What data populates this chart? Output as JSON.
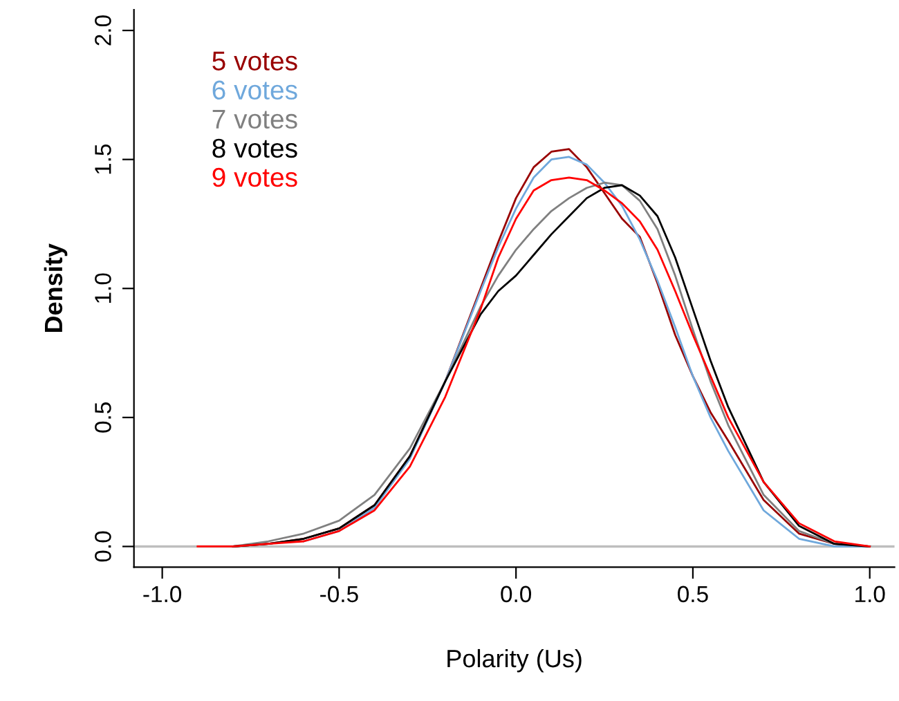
{
  "chart_data": {
    "type": "line",
    "xlabel": "Polarity (Us)",
    "ylabel": "Density",
    "x": [
      -0.9,
      -0.8,
      -0.7,
      -0.6,
      -0.5,
      -0.4,
      -0.3,
      -0.2,
      -0.1,
      -0.05,
      0,
      0.05,
      0.1,
      0.15,
      0.2,
      0.25,
      0.3,
      0.35,
      0.4,
      0.45,
      0.5,
      0.55,
      0.6,
      0.7,
      0.8,
      0.9,
      1.0
    ],
    "series": [
      {
        "name": "5 votes",
        "color": "#990000",
        "values": [
          null,
          0.0,
          0.01,
          0.03,
          0.07,
          0.16,
          0.35,
          0.64,
          1.0,
          1.18,
          1.35,
          1.47,
          1.53,
          1.54,
          1.47,
          1.37,
          1.27,
          1.2,
          1.02,
          0.82,
          0.66,
          0.52,
          0.41,
          0.18,
          0.05,
          0.01,
          0.0
        ]
      },
      {
        "name": "6 votes",
        "color": "#6fa8dc",
        "values": [
          null,
          null,
          null,
          0.02,
          0.06,
          0.15,
          0.34,
          0.64,
          0.99,
          1.16,
          1.31,
          1.43,
          1.5,
          1.51,
          1.48,
          1.41,
          1.32,
          1.19,
          1.03,
          0.85,
          0.66,
          0.5,
          0.37,
          0.14,
          0.03,
          0.0,
          0.0
        ]
      },
      {
        "name": "7 votes",
        "color": "#808080",
        "values": [
          null,
          0.0,
          0.02,
          0.05,
          0.1,
          0.2,
          0.38,
          0.64,
          0.93,
          1.05,
          1.15,
          1.23,
          1.3,
          1.35,
          1.39,
          1.41,
          1.4,
          1.34,
          1.23,
          1.05,
          0.84,
          0.64,
          0.47,
          0.2,
          0.06,
          0.01,
          0.0
        ]
      },
      {
        "name": "8 votes",
        "color": "#000000",
        "values": [
          null,
          0.0,
          0.01,
          0.03,
          0.07,
          0.16,
          0.35,
          0.64,
          0.9,
          0.99,
          1.05,
          1.13,
          1.21,
          1.28,
          1.35,
          1.39,
          1.4,
          1.36,
          1.28,
          1.12,
          0.92,
          0.72,
          0.54,
          0.25,
          0.08,
          0.01,
          0.0
        ]
      },
      {
        "name": "9 votes",
        "color": "#ff0000",
        "values": [
          0.0,
          0.0,
          0.01,
          0.02,
          0.06,
          0.14,
          0.31,
          0.58,
          0.92,
          1.12,
          1.27,
          1.38,
          1.42,
          1.43,
          1.42,
          1.38,
          1.33,
          1.26,
          1.15,
          0.99,
          0.82,
          0.66,
          0.5,
          0.25,
          0.09,
          0.02,
          0.0
        ]
      }
    ],
    "xlim": [
      -1.08,
      1.07
    ],
    "ylim": [
      -0.08,
      2.08
    ],
    "xticks": [
      {
        "value": -1,
        "label": "-1.0"
      },
      -0.5,
      {
        "value": 0,
        "label": "0.0"
      },
      0.5,
      {
        "value": 1,
        "label": "1.0"
      }
    ],
    "yticks": [
      {
        "value": 0,
        "label": "0.0"
      },
      0.5,
      {
        "value": 1,
        "label": "1.0"
      },
      1.5,
      {
        "value": 2,
        "label": "2.0"
      }
    ],
    "ref_lines": [
      {
        "axis": "y",
        "value": 0,
        "color": "#bebebe"
      }
    ],
    "legend": "top left",
    "grid": false
  }
}
